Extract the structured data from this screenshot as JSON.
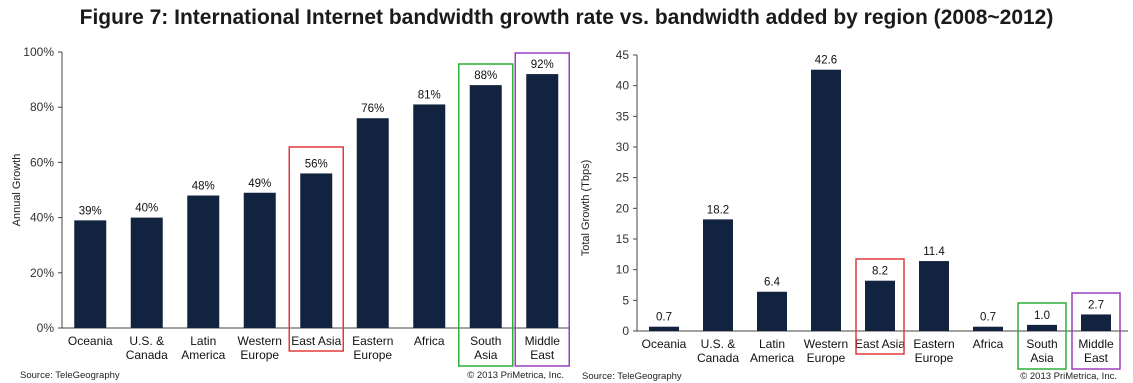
{
  "figure_title": "Figure 7: International Internet bandwidth growth rate vs. bandwidth added by region (2008~2012)",
  "colors": {
    "bar": "#12233f",
    "highlight_red": "#e23a3a",
    "highlight_green": "#2fae3a",
    "highlight_purple": "#9b3fbf"
  },
  "chart_data": [
    {
      "type": "bar",
      "categories": [
        "Oceania",
        "U.S. & Canada",
        "Latin America",
        "Western Europe",
        "East Asia",
        "Eastern Europe",
        "Africa",
        "South Asia",
        "Middle East"
      ],
      "category_lines": [
        [
          "Oceania"
        ],
        [
          "U.S. &",
          "Canada"
        ],
        [
          "Latin",
          "America"
        ],
        [
          "Western",
          "Europe"
        ],
        [
          "East Asia"
        ],
        [
          "Eastern",
          "Europe"
        ],
        [
          "Africa"
        ],
        [
          "South",
          "Asia"
        ],
        [
          "Middle",
          "East"
        ]
      ],
      "values": [
        39,
        40,
        48,
        49,
        56,
        76,
        81,
        88,
        92
      ],
      "value_labels": [
        "39%",
        "40%",
        "48%",
        "49%",
        "56%",
        "76%",
        "81%",
        "88%",
        "92%"
      ],
      "title": "",
      "xlabel": "",
      "ylabel": "Annual Growth",
      "ylim": [
        0,
        100
      ],
      "yticks": [
        0,
        20,
        40,
        60,
        80,
        100
      ],
      "ytick_labels": [
        "0%",
        "20%",
        "40%",
        "60%",
        "80%",
        "100%"
      ],
      "grid": false,
      "highlights": [
        {
          "category": "East Asia",
          "color": "red"
        },
        {
          "category": "South Asia",
          "color": "green"
        },
        {
          "category": "Middle East",
          "color": "purple"
        }
      ],
      "source": "Source: TeleGeography",
      "credit": "© 2013 PriMetrica, Inc."
    },
    {
      "type": "bar",
      "categories": [
        "Oceania",
        "U.S. & Canada",
        "Latin America",
        "Western Europe",
        "East Asia",
        "Eastern Europe",
        "Africa",
        "South Asia",
        "Middle East"
      ],
      "category_lines": [
        [
          "Oceania"
        ],
        [
          "U.S. &",
          "Canada"
        ],
        [
          "Latin",
          "America"
        ],
        [
          "Western",
          "Europe"
        ],
        [
          "East Asia"
        ],
        [
          "Eastern",
          "Europe"
        ],
        [
          "Africa"
        ],
        [
          "South",
          "Asia"
        ],
        [
          "Middle",
          "East"
        ]
      ],
      "values": [
        0.7,
        18.2,
        6.4,
        42.6,
        8.2,
        11.4,
        0.7,
        1.0,
        2.7
      ],
      "value_labels": [
        "0.7",
        "18.2",
        "6.4",
        "42.6",
        "8.2",
        "11.4",
        "0.7",
        "1.0",
        "2.7"
      ],
      "title": "",
      "xlabel": "",
      "ylabel": "Total Growth (Tbps)",
      "ylim": [
        0,
        45
      ],
      "yticks": [
        0,
        5,
        10,
        15,
        20,
        25,
        30,
        35,
        40,
        45
      ],
      "ytick_labels": [
        "0",
        "5",
        "10",
        "15",
        "20",
        "25",
        "30",
        "35",
        "40",
        "45"
      ],
      "grid": false,
      "highlights": [
        {
          "category": "East Asia",
          "color": "red"
        },
        {
          "category": "South Asia",
          "color": "green"
        },
        {
          "category": "Middle East",
          "color": "purple"
        }
      ],
      "source": "Source: TeleGeography",
      "credit": "© 2013 PriMetrica, Inc."
    }
  ]
}
